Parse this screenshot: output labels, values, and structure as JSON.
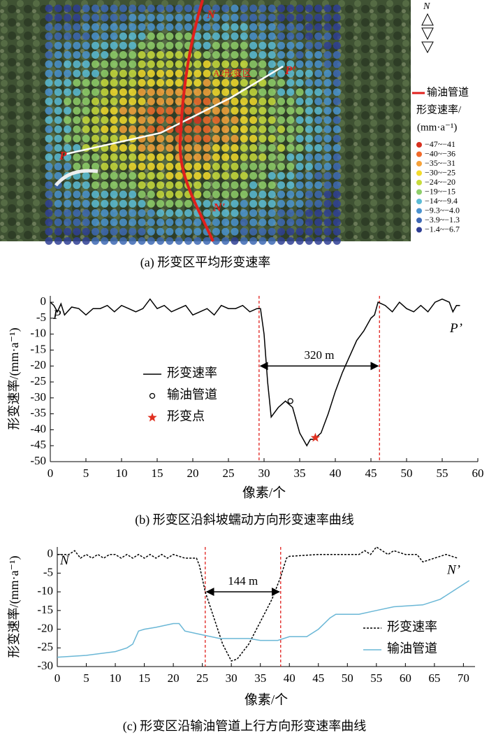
{
  "map": {
    "caption": "(a) 形变区平均形变速率",
    "labels": [
      "N",
      "N'",
      "P",
      "P'",
      "A2形变区"
    ],
    "north": "N",
    "pipeline_label": "输油管道",
    "legend_title": [
      "形变速率/",
      "(mm·a⁻¹)"
    ],
    "legend": [
      {
        "label": "−47~−41",
        "color": "#d7301f"
      },
      {
        "label": "−40~−36",
        "color": "#f16a2a"
      },
      {
        "label": "−35~−31",
        "color": "#f6a23a"
      },
      {
        "label": "−30~−25",
        "color": "#f3dc2c"
      },
      {
        "label": "−24~−20",
        "color": "#c8dc3c"
      },
      {
        "label": "−19~−15",
        "color": "#8fcf6a"
      },
      {
        "label": "−14~−9.4",
        "color": "#5bbcd6"
      },
      {
        "label": "−9.3~−4.0",
        "color": "#4a93cf"
      },
      {
        "label": "−3.9~−1.3",
        "color": "#3d68b4"
      },
      {
        "label": "−1.4~−6.7",
        "color": "#2f3f94"
      }
    ]
  },
  "chart_data": [
    {
      "type": "line",
      "caption": "(b) 形变区沿斜坡蠕动方向形变速率曲线",
      "x_label": "像素/个",
      "y_label": "形变速率/(mm·a⁻¹)",
      "xlim": [
        0,
        60
      ],
      "ylim": [
        -50,
        2
      ],
      "xticks": [
        0,
        5,
        10,
        15,
        20,
        25,
        30,
        35,
        40,
        45,
        50,
        55,
        60
      ],
      "yticks": [
        0,
        -5,
        -10,
        -15,
        -20,
        -25,
        -30,
        -35,
        -40,
        -45,
        -50
      ],
      "legend": "center",
      "end_labels": [
        "P",
        "P’"
      ],
      "vlines": [
        29.3,
        46.2
      ],
      "span": {
        "label": "320 m",
        "y": -20
      },
      "series": [
        {
          "name": "形变速率",
          "color": "#000000",
          "style": "solid",
          "x": [
            0,
            0.5,
            1,
            1.5,
            2,
            3,
            4,
            5,
            6,
            7,
            8,
            9,
            10,
            11,
            12,
            13,
            14,
            15,
            16,
            17,
            18,
            19,
            20,
            21,
            22,
            23,
            24,
            25,
            26,
            27,
            28,
            29,
            29.5,
            30,
            30.5,
            31,
            32,
            33,
            34,
            35,
            36,
            36.5,
            37,
            38,
            39,
            40,
            41,
            42,
            43,
            44,
            45,
            45.5,
            46,
            47,
            48,
            49,
            50,
            51,
            52,
            53,
            54,
            55,
            56,
            56.5,
            57,
            57.5
          ],
          "values": [
            0,
            -1,
            -3,
            -0.5,
            -4,
            -1.5,
            -2,
            -4,
            -2,
            -2,
            -1,
            -3,
            -1,
            -2,
            -3,
            -2,
            1,
            -2,
            -1,
            -3,
            -2,
            -1,
            -4,
            -3,
            -2,
            -4,
            -1,
            -2,
            -2,
            -1,
            -3,
            -2,
            -2,
            -10,
            -25,
            -36,
            -33,
            -31,
            -33,
            -41,
            -45,
            -43,
            -43,
            -41,
            -35,
            -28,
            -22,
            -17,
            -12,
            -9,
            -5,
            -4,
            0,
            -1,
            -3,
            0,
            -2,
            -3,
            -1,
            -3,
            0,
            1,
            0,
            -3,
            -1,
            -1
          ]
        },
        {
          "name": "输油管道",
          "color": "#000000",
          "style": "circle",
          "x": [
            33.7
          ],
          "values": [
            -31
          ]
        },
        {
          "name": "形变点",
          "color": "#e03020",
          "style": "star",
          "x": [
            37.2
          ],
          "values": [
            -42.5
          ]
        }
      ]
    },
    {
      "type": "line",
      "caption": "(c) 形变区沿输油管道上行方向形变速率曲线",
      "x_label": "像素/个",
      "y_label": "形变速率/(mm·a⁻¹)",
      "xlim": [
        0,
        72
      ],
      "ylim": [
        -30,
        2
      ],
      "xticks": [
        0,
        5,
        10,
        15,
        20,
        25,
        30,
        35,
        40,
        45,
        50,
        55,
        60,
        65,
        70
      ],
      "yticks": [
        0,
        -5,
        -10,
        -15,
        -20,
        -25,
        -30
      ],
      "legend": "lower right",
      "end_labels": [
        "N",
        "N’"
      ],
      "vlines": [
        25.5,
        38.5
      ],
      "span": {
        "label": "144 m",
        "y": -10
      },
      "series": [
        {
          "name": "形变速率",
          "color": "#000000",
          "style": "dashed",
          "x": [
            0,
            2,
            3,
            4,
            5,
            6,
            7,
            8,
            9,
            10,
            11,
            12,
            13,
            14,
            15,
            16,
            17,
            18,
            19,
            20,
            22,
            24,
            24.5,
            25.5,
            27,
            28.5,
            30,
            31,
            33,
            35,
            37,
            38.5,
            39.5,
            40,
            45,
            50,
            52,
            53,
            54,
            55,
            56,
            57,
            58,
            60,
            62,
            63,
            65,
            67,
            69
          ],
          "values": [
            0,
            0,
            1,
            -1,
            0,
            -1,
            0,
            -1,
            0,
            0,
            -1,
            0,
            -1,
            0,
            -1,
            0,
            -1,
            0,
            -1,
            0,
            -1,
            -1,
            -3,
            -10,
            -17,
            -24,
            -28.5,
            -28,
            -24,
            -18,
            -12,
            -6,
            -1,
            -0.5,
            0,
            0,
            0,
            1,
            0,
            2,
            1,
            0,
            1,
            0,
            0,
            -2,
            -1,
            0,
            -1
          ]
        },
        {
          "name": "输油管道",
          "color": "#6ab7d6",
          "style": "solid",
          "x": [
            0,
            5,
            10,
            12,
            13,
            14,
            15,
            17,
            20,
            21,
            22,
            25,
            28,
            33,
            35,
            38,
            40,
            43,
            45,
            47,
            48,
            52,
            55,
            58,
            63,
            66,
            69,
            71
          ],
          "values": [
            -27.5,
            -27,
            -26,
            -25,
            -24,
            -20.5,
            -20,
            -19.5,
            -18.5,
            -18.5,
            -20.5,
            -21.5,
            -22.5,
            -22.5,
            -23,
            -23,
            -22,
            -22,
            -20,
            -17,
            -16,
            -16,
            -15,
            -14,
            -13.5,
            -12,
            -9,
            -7
          ]
        }
      ]
    }
  ]
}
